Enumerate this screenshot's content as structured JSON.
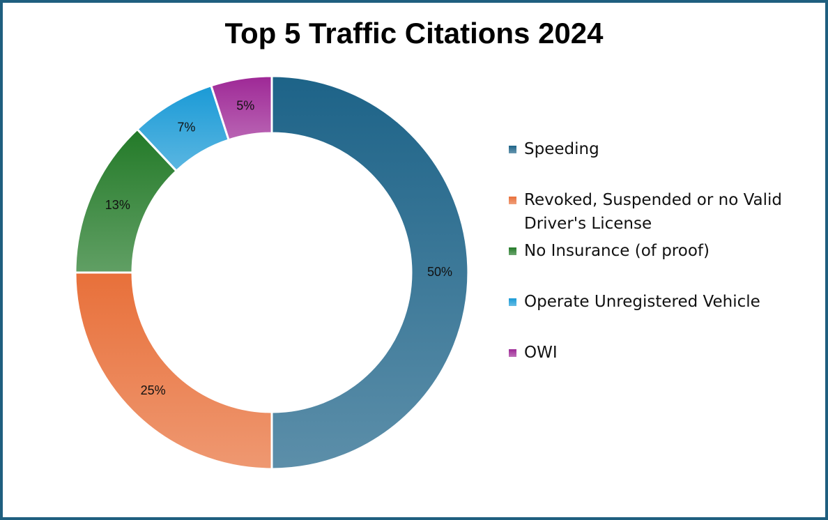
{
  "chart_data": {
    "type": "donut",
    "title": "Top 5 Traffic Citations 2024",
    "categories": [
      "Speeding",
      "Revoked, Suspended or no Valid Driver's License",
      "No Insurance (of proof)",
      "Operate Unregistered Vehicle",
      "OWI"
    ],
    "values": [
      50,
      25,
      13,
      7,
      5
    ],
    "value_labels": [
      "50%",
      "25%",
      "13%",
      "7%",
      "5%"
    ],
    "colors": [
      "#1d6388",
      "#e8703a",
      "#237a28",
      "#1a9ad6",
      "#9e2896"
    ],
    "legend": "right"
  }
}
